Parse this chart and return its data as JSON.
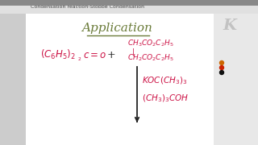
{
  "bg_color": "#ffffff",
  "left_panel_color": "#cccccc",
  "header_bg": "#e0e0e0",
  "header_text": "Condensation reaction-Stobbe Condensation",
  "header_color": "#444444",
  "header_fontsize": 4.5,
  "title_text": "Application",
  "title_color": "#6b7c3a",
  "title_fontsize": 11,
  "text_color_pink": "#cc1144",
  "line_color": "#222222",
  "right_panel_bg": "#e8e8e8",
  "logo_color": "#aaaaaa"
}
